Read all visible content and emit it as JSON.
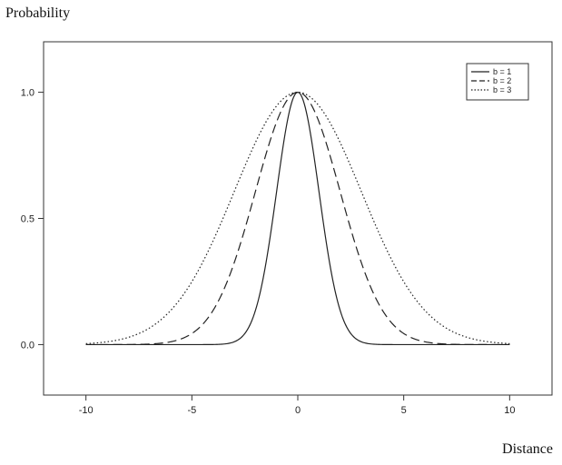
{
  "chart_data": {
    "type": "line",
    "xlabel": "Distance",
    "ylabel": "Probability",
    "xlim": [
      -12,
      12
    ],
    "ylim": [
      -0.2,
      1.2
    ],
    "xticks": [
      "-10",
      "-5",
      "0",
      "5",
      "10"
    ],
    "xtick_values": [
      -10,
      -5,
      0,
      5,
      10
    ],
    "yticks": [
      "0.0",
      "0.5",
      "1.0"
    ],
    "ytick_values": [
      0,
      0.5,
      1.0
    ],
    "x_range": [
      -10,
      10
    ],
    "grid": false,
    "legend_position": "top-right",
    "series": [
      {
        "name": "b = 1",
        "b": 1,
        "style": "solid",
        "color": "#222222"
      },
      {
        "name": "b = 2",
        "b": 2,
        "style": "dashed",
        "color": "#222222"
      },
      {
        "name": "b = 3",
        "b": 3,
        "style": "dotted",
        "color": "#222222"
      }
    ]
  }
}
